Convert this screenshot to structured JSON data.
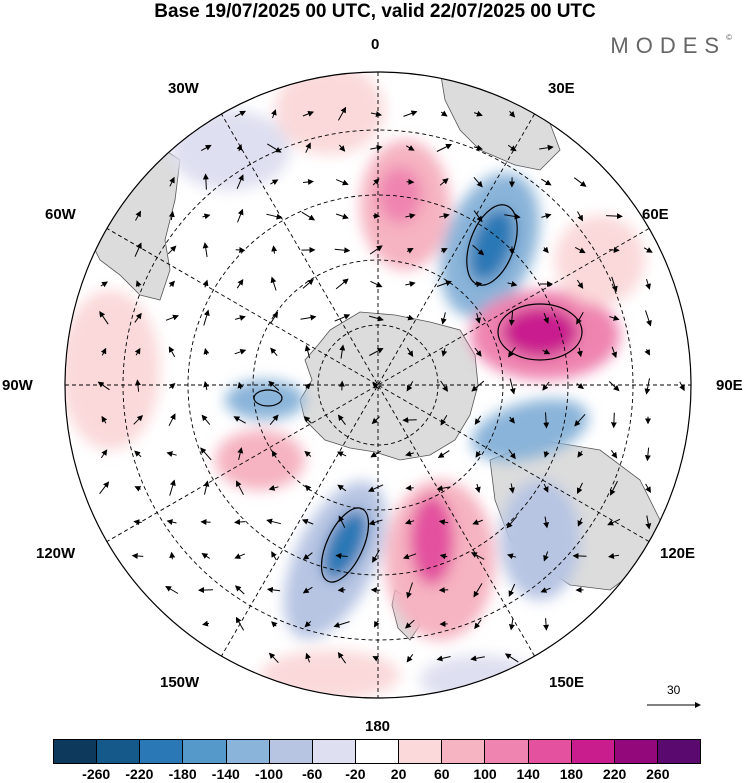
{
  "title": "Base 19/07/2025 00 UTC, valid 22/07/2025 00 UTC",
  "brand": "MODES",
  "brand_mark": "©",
  "longitude_labels": {
    "n0": "0",
    "n30e": "30E",
    "n60e": "60E",
    "n90e": "90E",
    "n120e": "120E",
    "n150e": "150E",
    "n180": "180",
    "n150w": "150W",
    "n120w": "120W",
    "n90w": "90W",
    "n60w": "60W",
    "n30w": "30W"
  },
  "vector_scale": "30",
  "colorbar": {
    "colors": [
      "#0d3a5c",
      "#15598b",
      "#2a78b5",
      "#5499c9",
      "#8ab4d9",
      "#b7c5e3",
      "#dedff0",
      "#ffffff",
      "#fbd9da",
      "#f6b3c1",
      "#ef84b0",
      "#e3519f",
      "#c91d8e",
      "#93087a",
      "#5a0a6e"
    ],
    "tick_labels": [
      "-260",
      "-220",
      "-180",
      "-140",
      "-100",
      "-60",
      "-20",
      "20",
      "60",
      "100",
      "140",
      "180",
      "220",
      "260"
    ]
  },
  "colors": {
    "land": "#dcdcdc",
    "grid": "#000000"
  }
}
